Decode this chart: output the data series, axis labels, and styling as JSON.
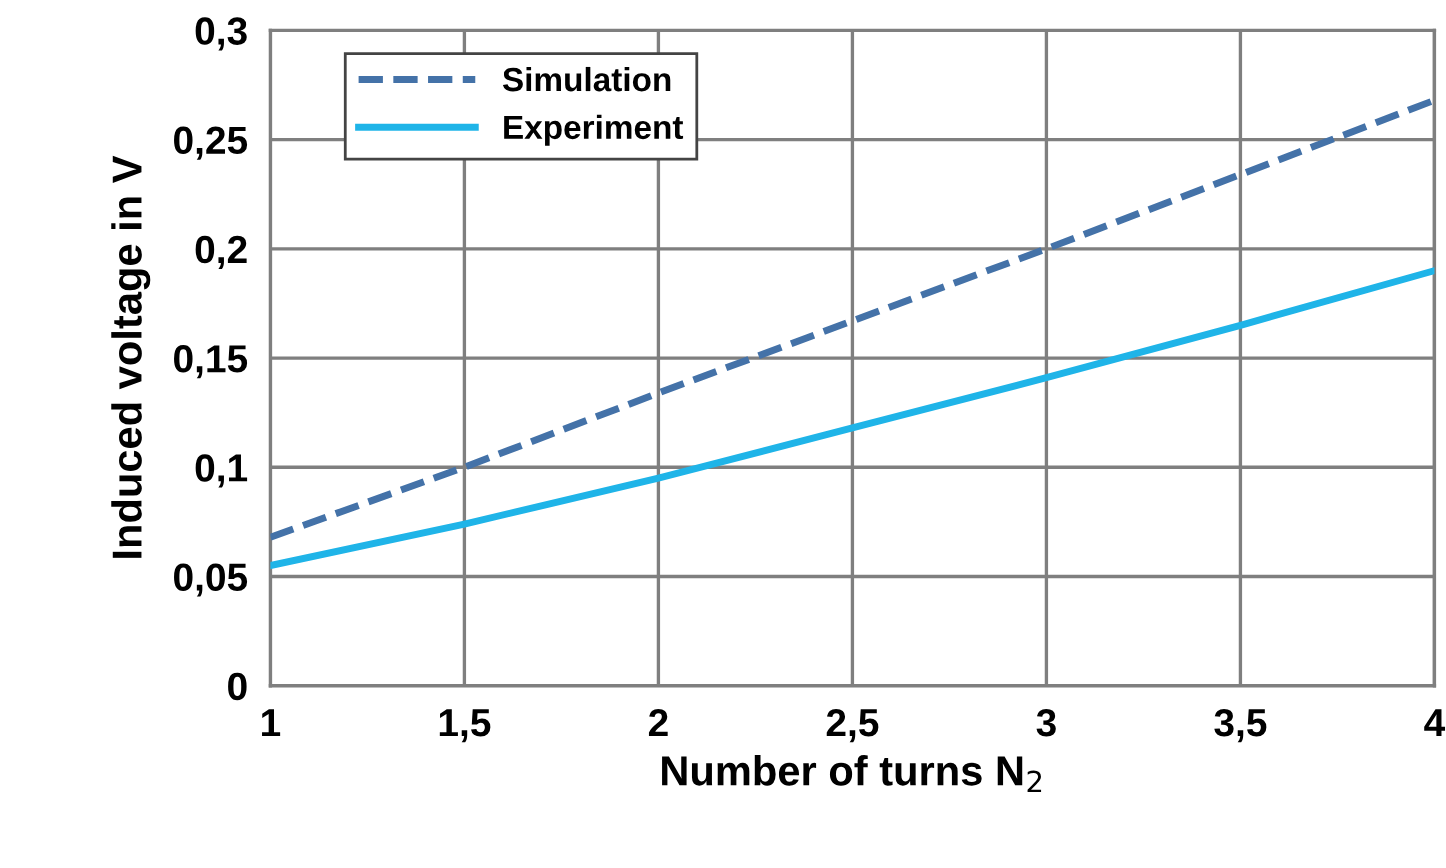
{
  "chart_data": {
    "type": "line",
    "xlabel": "Number of turns N$_{2}$",
    "ylabel": "Induced voltage in V",
    "x": [
      1,
      1.5,
      2,
      2.5,
      3,
      3.5,
      4
    ],
    "series": [
      {
        "name": "Simulation",
        "color": "#4472a8",
        "line_style": "dashed",
        "values": [
          0.068,
          0.1,
          0.134,
          0.167,
          0.2,
          0.234,
          0.268
        ]
      },
      {
        "name": "Experiment",
        "color": "#1fb4e8",
        "line_style": "solid",
        "values": [
          0.055,
          0.074,
          0.095,
          0.118,
          0.141,
          0.165,
          0.19
        ]
      }
    ],
    "xlim": [
      1,
      4
    ],
    "ylim": [
      0,
      0.3
    ],
    "xticks": [
      1,
      {
        "value": 1.5,
        "label": "1,5"
      },
      2,
      {
        "value": 2.5,
        "label": "2,5"
      },
      3,
      {
        "value": 3.5,
        "label": "3,5"
      },
      4
    ],
    "yticks": [
      0,
      {
        "value": 0.05,
        "label": "0,05"
      },
      {
        "value": 0.1,
        "label": "0,1"
      },
      {
        "value": 0.15,
        "label": "0,15"
      },
      {
        "value": 0.2,
        "label": "0,2"
      },
      {
        "value": 0.25,
        "label": "0,25"
      },
      {
        "value": 0.3,
        "label": "0,3"
      }
    ],
    "grid": true,
    "legend": "top left",
    "marker": "none"
  }
}
